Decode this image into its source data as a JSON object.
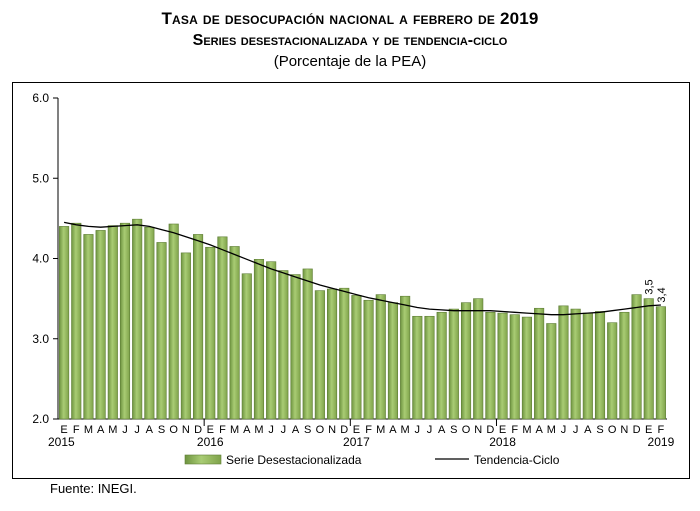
{
  "header": {
    "title": "Tasa de desocupación nacional a febrero de 2019",
    "subtitle": "Series desestacionalizada y de tendencia-ciclo",
    "unit": "(Porcentaje de la PEA)"
  },
  "footer": {
    "source": "Fuente: INEGI."
  },
  "chart_data": {
    "type": "bar",
    "title": "Tasa de desocupación nacional a febrero de 2019",
    "subtitle": "Series desestacionalizada y de tendencia-ciclo",
    "ylabel": "(Porcentaje de la PEA)",
    "ylim": [
      2.0,
      6.0
    ],
    "yticks": [
      "2.0",
      "3.0",
      "4.0",
      "5.0",
      "6.0"
    ],
    "grid": false,
    "legend_position": "bottom",
    "month_labels": [
      "E",
      "F",
      "M",
      "A",
      "M",
      "J",
      "J",
      "A",
      "S",
      "O",
      "N",
      "D",
      "E",
      "F",
      "M",
      "A",
      "M",
      "J",
      "J",
      "A",
      "S",
      "O",
      "N",
      "D",
      "E",
      "F",
      "M",
      "A",
      "M",
      "J",
      "J",
      "A",
      "S",
      "O",
      "N",
      "D",
      "E",
      "F",
      "M",
      "A",
      "M",
      "J",
      "J",
      "A",
      "S",
      "O",
      "N",
      "D",
      "E",
      "F"
    ],
    "year_labels": [
      {
        "label": "2015",
        "index": 0
      },
      {
        "label": "2016",
        "index": 12
      },
      {
        "label": "2017",
        "index": 24
      },
      {
        "label": "2018",
        "index": 36
      },
      {
        "label": "2019",
        "index": 49
      }
    ],
    "series": [
      {
        "name": "Serie Desestacionalizada",
        "kind": "bar",
        "color": "#8cb054",
        "values": [
          4.4,
          4.44,
          4.3,
          4.35,
          4.41,
          4.44,
          4.49,
          4.39,
          4.2,
          4.43,
          4.07,
          4.3,
          4.14,
          4.27,
          4.15,
          3.81,
          3.99,
          3.96,
          3.85,
          3.8,
          3.87,
          3.6,
          3.62,
          3.63,
          3.54,
          3.48,
          3.55,
          3.45,
          3.53,
          3.28,
          3.28,
          3.33,
          3.37,
          3.45,
          3.5,
          3.33,
          3.32,
          3.3,
          3.27,
          3.38,
          3.19,
          3.41,
          3.37,
          3.32,
          3.34,
          3.2,
          3.33,
          3.55,
          3.5,
          3.4
        ]
      },
      {
        "name": "Tendencia-Ciclo",
        "kind": "line",
        "color": "#000000",
        "values": [
          4.45,
          4.42,
          4.4,
          4.39,
          4.4,
          4.41,
          4.42,
          4.4,
          4.36,
          4.32,
          4.27,
          4.22,
          4.17,
          4.11,
          4.05,
          3.99,
          3.93,
          3.87,
          3.82,
          3.77,
          3.72,
          3.67,
          3.63,
          3.59,
          3.55,
          3.51,
          3.48,
          3.45,
          3.42,
          3.39,
          3.37,
          3.36,
          3.35,
          3.35,
          3.35,
          3.35,
          3.34,
          3.33,
          3.32,
          3.31,
          3.3,
          3.3,
          3.31,
          3.32,
          3.33,
          3.35,
          3.37,
          3.39,
          3.41,
          3.42
        ]
      }
    ],
    "data_labels": [
      {
        "text": "3,5",
        "index": 48
      },
      {
        "text": "3,4",
        "index": 49
      }
    ]
  }
}
